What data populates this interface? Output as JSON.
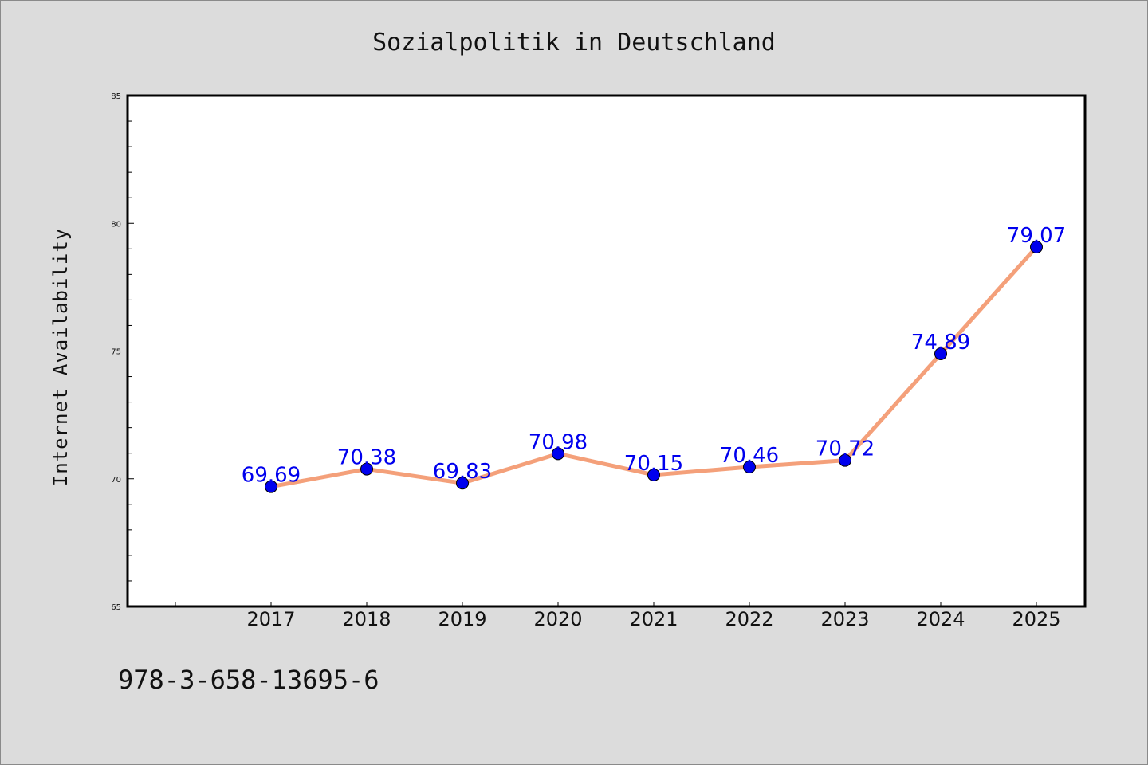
{
  "chart_data": {
    "type": "line",
    "title": "Sozialpolitik in Deutschland",
    "xlabel": "",
    "ylabel": "Internet Availability",
    "categories": [
      "2017",
      "2018",
      "2019",
      "2020",
      "2021",
      "2022",
      "2023",
      "2024",
      "2025"
    ],
    "series": [
      {
        "values": [
          69.69,
          70.38,
          69.83,
          70.98,
          70.15,
          70.46,
          70.72,
          74.89,
          79.07
        ],
        "labels": [
          "69.69",
          "70.38",
          "69.83",
          "70.98",
          "70.15",
          "70.46",
          "70.72",
          "74.89",
          "79.07"
        ],
        "line_color": "#f4a07a",
        "marker_color": "#0000ee",
        "label_color": "#0000ee"
      }
    ],
    "ylim": [
      65,
      85
    ],
    "yticks": [
      "65",
      "70",
      "75",
      "80",
      "85"
    ],
    "grid": false,
    "legend": "none"
  },
  "footer": {
    "isbn": "978-3-658-13695-6"
  },
  "colors": {
    "background": "#dcdcdc",
    "plot_background": "#ffffff"
  }
}
